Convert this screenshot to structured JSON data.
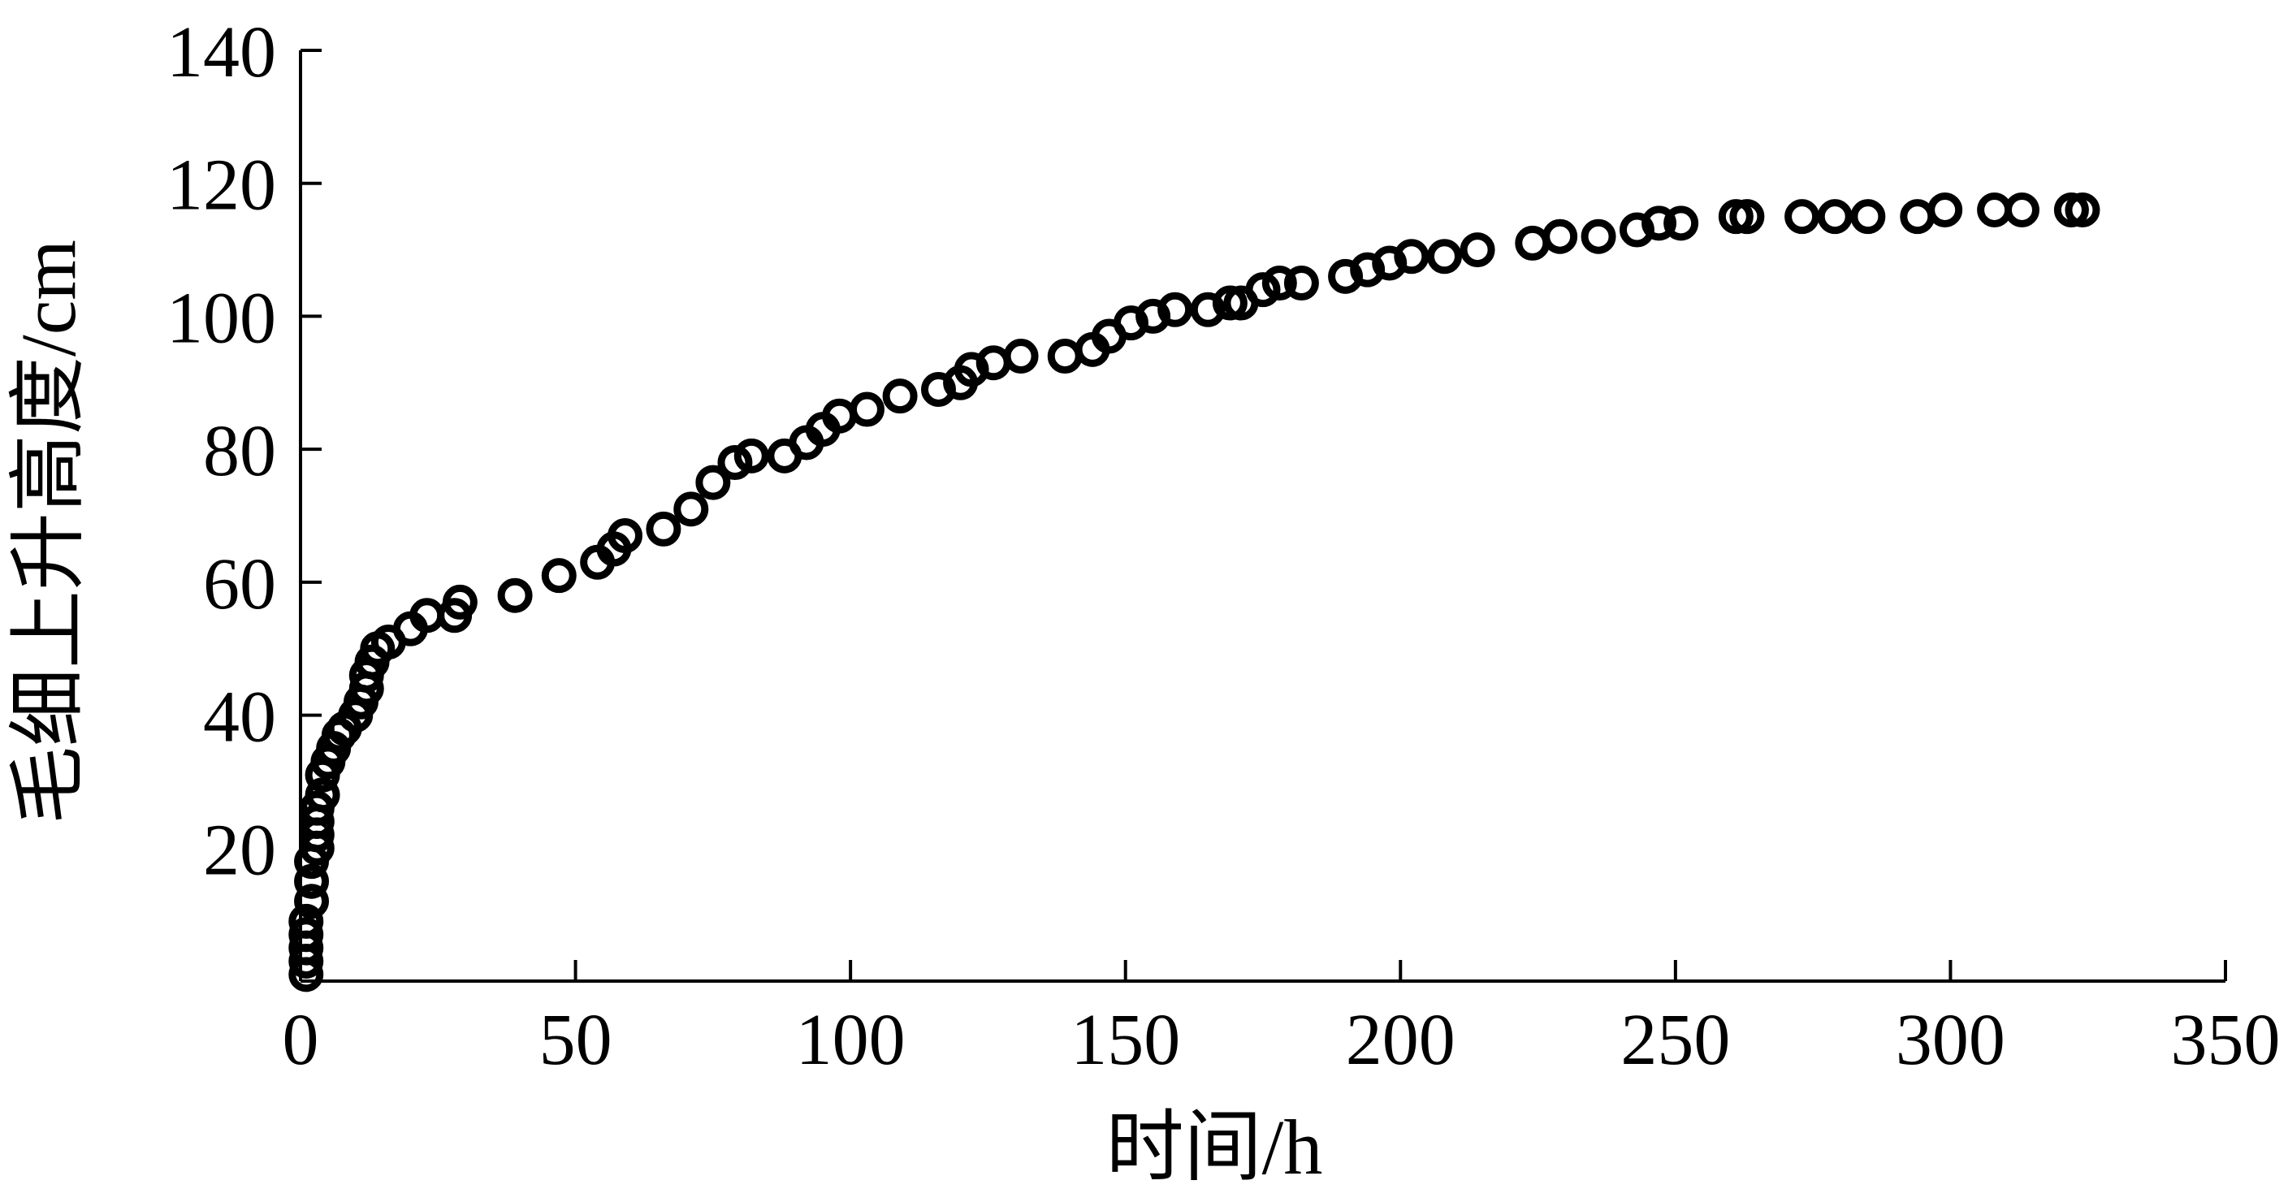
{
  "chart_data": {
    "type": "scatter",
    "title": "",
    "xlabel": "时间/h",
    "ylabel": "毛细上升高度/cm",
    "xlim": [
      0,
      350
    ],
    "ylim": [
      0,
      140
    ],
    "xticks": [
      0,
      50,
      100,
      150,
      200,
      250,
      300,
      350
    ],
    "yticks": [
      20,
      40,
      60,
      80,
      100,
      120,
      140
    ],
    "grid": false,
    "legend": "none",
    "marker": "open-circle",
    "color": "#000000",
    "series": [
      {
        "points": [
          [
            1,
            1
          ],
          [
            1,
            3
          ],
          [
            1,
            5
          ],
          [
            1,
            7
          ],
          [
            1,
            9
          ],
          [
            2,
            12
          ],
          [
            2,
            15
          ],
          [
            2,
            18
          ],
          [
            3,
            20
          ],
          [
            3,
            22
          ],
          [
            3,
            24
          ],
          [
            3,
            26
          ],
          [
            4,
            28
          ],
          [
            4,
            31
          ],
          [
            5,
            33
          ],
          [
            6,
            35
          ],
          [
            7,
            37
          ],
          [
            8,
            38
          ],
          [
            10,
            40
          ],
          [
            11,
            42
          ],
          [
            12,
            44
          ],
          [
            12,
            46
          ],
          [
            13,
            48
          ],
          [
            14,
            50
          ],
          [
            16,
            51
          ],
          [
            20,
            53
          ],
          [
            23,
            55
          ],
          [
            28,
            55
          ],
          [
            29,
            57
          ],
          [
            39,
            58
          ],
          [
            47,
            61
          ],
          [
            54,
            63
          ],
          [
            57,
            65
          ],
          [
            59,
            67
          ],
          [
            66,
            68
          ],
          [
            71,
            71
          ],
          [
            75,
            75
          ],
          [
            79,
            78
          ],
          [
            82,
            79
          ],
          [
            88,
            79
          ],
          [
            92,
            81
          ],
          [
            95,
            83
          ],
          [
            98,
            85
          ],
          [
            103,
            86
          ],
          [
            109,
            88
          ],
          [
            116,
            89
          ],
          [
            120,
            90
          ],
          [
            122,
            92
          ],
          [
            126,
            93
          ],
          [
            131,
            94
          ],
          [
            139,
            94
          ],
          [
            144,
            95
          ],
          [
            147,
            97
          ],
          [
            151,
            99
          ],
          [
            155,
            100
          ],
          [
            159,
            101
          ],
          [
            165,
            101
          ],
          [
            169,
            102
          ],
          [
            171,
            102
          ],
          [
            175,
            104
          ],
          [
            178,
            105
          ],
          [
            182,
            105
          ],
          [
            190,
            106
          ],
          [
            194,
            107
          ],
          [
            198,
            108
          ],
          [
            202,
            109
          ],
          [
            208,
            109
          ],
          [
            214,
            110
          ],
          [
            224,
            111
          ],
          [
            229,
            112
          ],
          [
            236,
            112
          ],
          [
            243,
            113
          ],
          [
            247,
            114
          ],
          [
            251,
            114
          ],
          [
            261,
            115
          ],
          [
            263,
            115
          ],
          [
            273,
            115
          ],
          [
            279,
            115
          ],
          [
            285,
            115
          ],
          [
            294,
            115
          ],
          [
            299,
            116
          ],
          [
            308,
            116
          ],
          [
            313,
            116
          ],
          [
            322,
            116
          ],
          [
            324,
            116
          ]
        ]
      }
    ]
  }
}
